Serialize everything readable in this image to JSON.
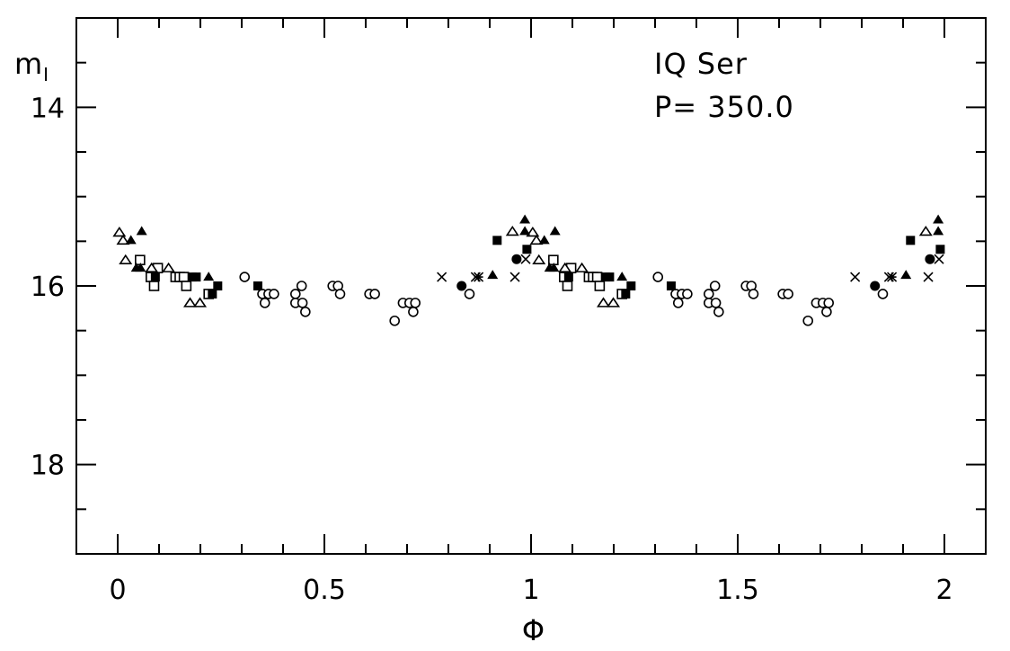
{
  "chart_data": {
    "type": "scatter",
    "title": "",
    "annotations": [
      "IQ Ser",
      "P= 350.0"
    ],
    "xlabel": "Φ",
    "ylabel": "m",
    "ylabel_subscript": "I",
    "xlim": [
      -0.1,
      2.1
    ],
    "ylim": [
      19,
      13
    ],
    "y_inverted": true,
    "grid": false,
    "x_ticks": [
      0,
      0.5,
      1,
      1.5,
      2
    ],
    "x_tick_labels": [
      "0",
      "0.5",
      "1",
      "1.5",
      "2"
    ],
    "x_minor_step": 0.1,
    "y_ticks": [
      14,
      16,
      18
    ],
    "y_tick_labels": [
      "14",
      "16",
      "18"
    ],
    "y_minor_step": 0.5,
    "phase_repeat": [
      0,
      1
    ],
    "series": [
      {
        "marker": "open-circle",
        "points": [
          [
            0.307,
            15.9
          ],
          [
            0.35,
            16.09
          ],
          [
            0.365,
            16.09
          ],
          [
            0.378,
            16.09
          ],
          [
            0.356,
            16.19
          ],
          [
            0.43,
            16.09
          ],
          [
            0.445,
            16.0
          ],
          [
            0.43,
            16.19
          ],
          [
            0.447,
            16.19
          ],
          [
            0.454,
            16.29
          ],
          [
            0.52,
            16.0
          ],
          [
            0.533,
            16.0
          ],
          [
            0.538,
            16.09
          ],
          [
            0.609,
            16.09
          ],
          [
            0.622,
            16.09
          ],
          [
            0.69,
            16.19
          ],
          [
            0.706,
            16.19
          ],
          [
            0.72,
            16.19
          ],
          [
            0.715,
            16.29
          ],
          [
            0.67,
            16.39
          ],
          [
            0.851,
            16.09
          ]
        ]
      },
      {
        "marker": "filled-circle",
        "points": [
          [
            0.832,
            16.0
          ],
          [
            0.965,
            15.7
          ]
        ]
      },
      {
        "marker": "open-square",
        "points": [
          [
            0.054,
            15.71
          ],
          [
            0.097,
            15.8
          ],
          [
            0.08,
            15.9
          ],
          [
            0.088,
            16.0
          ],
          [
            0.14,
            15.9
          ],
          [
            0.15,
            15.9
          ],
          [
            0.16,
            15.9
          ],
          [
            0.166,
            16.0
          ],
          [
            0.22,
            16.09
          ]
        ]
      },
      {
        "marker": "filled-square",
        "points": [
          [
            0.091,
            15.9
          ],
          [
            0.18,
            15.9
          ],
          [
            0.19,
            15.9
          ],
          [
            0.242,
            16.0
          ],
          [
            0.229,
            16.09
          ],
          [
            0.339,
            16.0
          ],
          [
            0.918,
            15.49
          ],
          [
            0.99,
            15.59
          ]
        ]
      },
      {
        "marker": "open-triangle",
        "points": [
          [
            0.004,
            15.4
          ],
          [
            0.013,
            15.49
          ],
          [
            0.019,
            15.71
          ],
          [
            0.082,
            15.8
          ],
          [
            0.123,
            15.8
          ],
          [
            0.175,
            16.19
          ],
          [
            0.199,
            16.19
          ],
          [
            0.955,
            15.39
          ]
        ]
      },
      {
        "marker": "filled-triangle",
        "points": [
          [
            0.032,
            15.49
          ],
          [
            0.058,
            15.39
          ],
          [
            0.045,
            15.8
          ],
          [
            0.055,
            15.8
          ],
          [
            0.22,
            15.9
          ],
          [
            0.907,
            15.88
          ],
          [
            0.985,
            15.26
          ],
          [
            0.985,
            15.39
          ]
        ]
      },
      {
        "marker": "cross",
        "points": [
          [
            0.784,
            15.9
          ],
          [
            0.866,
            15.9
          ],
          [
            0.961,
            15.9
          ],
          [
            0.987,
            15.7
          ]
        ]
      },
      {
        "marker": "asterisk",
        "points": [
          [
            0.873,
            15.9
          ]
        ]
      }
    ],
    "colors": {
      "ink": "#000000",
      "background": "#ffffff"
    }
  }
}
